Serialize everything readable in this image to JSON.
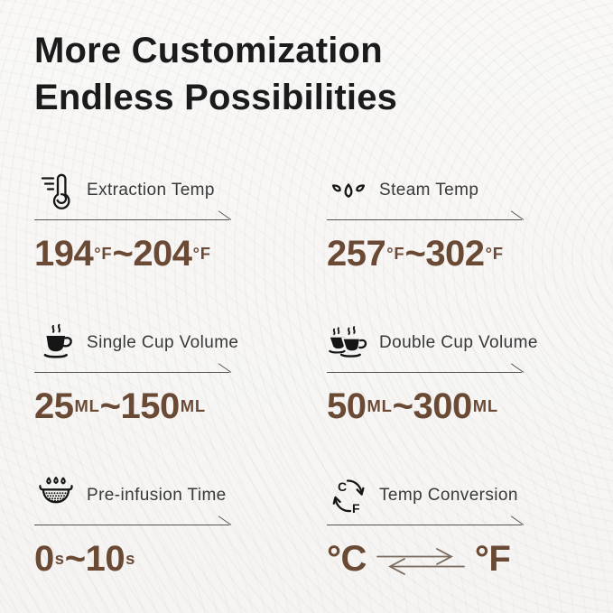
{
  "title": {
    "line1": "More Customization",
    "line2": "Endless Possibilities"
  },
  "colors": {
    "value_brown": "#6b4a35",
    "heading_text": "#1b1b1b",
    "label_text": "#383838",
    "divider_line": "#57514b",
    "background": "#f7f6f5"
  },
  "features": [
    {
      "id": "extraction-temp",
      "icon": "thermometer-icon",
      "label": "Extraction Temp",
      "value_parts": [
        {
          "text": "194"
        },
        {
          "text": "°F",
          "unit": true
        },
        {
          "text": " ~ "
        },
        {
          "text": "204"
        },
        {
          "text": "°F",
          "unit": true
        }
      ]
    },
    {
      "id": "steam-temp",
      "icon": "steam-icon",
      "label": "Steam Temp",
      "value_parts": [
        {
          "text": "257"
        },
        {
          "text": "°F",
          "unit": true
        },
        {
          "text": " ~ "
        },
        {
          "text": "302"
        },
        {
          "text": "°F",
          "unit": true
        }
      ]
    },
    {
      "id": "single-cup-volume",
      "icon": "single-cup-icon",
      "label": "Single Cup Volume",
      "value_parts": [
        {
          "text": "25"
        },
        {
          "text": "ML",
          "unit": true
        },
        {
          "text": " ~ "
        },
        {
          "text": "150"
        },
        {
          "text": "ML",
          "unit": true
        }
      ]
    },
    {
      "id": "double-cup-volume",
      "icon": "double-cup-icon",
      "label": "Double Cup Volume",
      "value_parts": [
        {
          "text": "50"
        },
        {
          "text": "ML",
          "unit": true
        },
        {
          "text": " ~ "
        },
        {
          "text": "300"
        },
        {
          "text": "ML",
          "unit": true
        }
      ]
    },
    {
      "id": "pre-infusion-time",
      "icon": "portafilter-drip-icon",
      "label": "Pre-infusion Time",
      "value_parts": [
        {
          "text": "0"
        },
        {
          "text": "s",
          "unit": true
        },
        {
          "text": "~"
        },
        {
          "text": "10"
        },
        {
          "text": "s",
          "unit": true
        }
      ]
    },
    {
      "id": "temp-conversion",
      "icon": "celsius-fahrenheit-cycle-icon",
      "label": "Temp Conversion",
      "value_parts": [
        {
          "text": "°C"
        },
        {
          "icon": "swap-arrows-icon"
        },
        {
          "text": "°F"
        }
      ]
    }
  ]
}
